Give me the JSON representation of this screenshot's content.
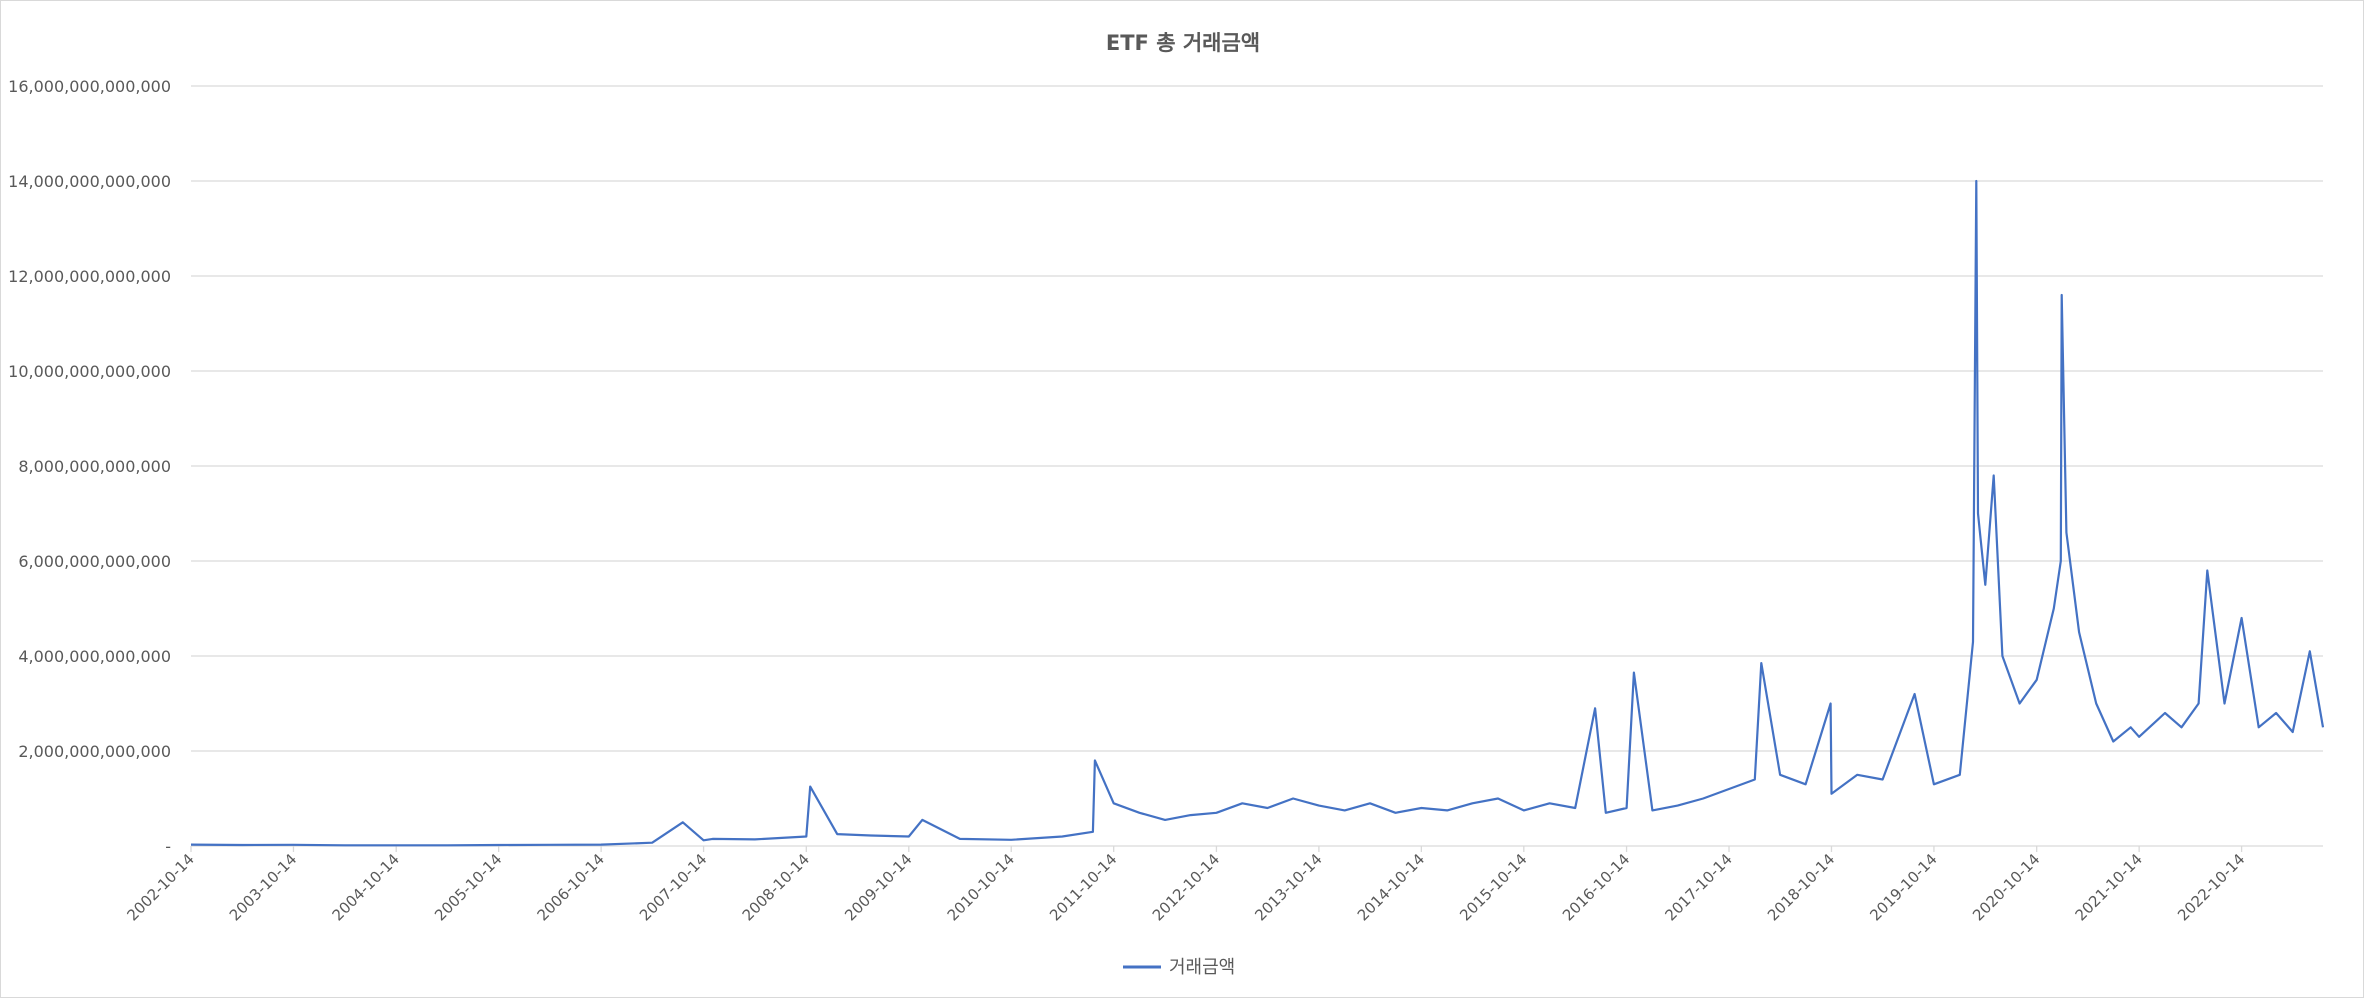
{
  "chart_data": {
    "type": "line",
    "title": "ETF 총 거래금액",
    "xlabel": "",
    "ylabel": "",
    "ylim": [
      0,
      16000000000000
    ],
    "yticks": [
      0,
      2000000000000,
      4000000000000,
      6000000000000,
      8000000000000,
      10000000000000,
      12000000000000,
      14000000000000,
      16000000000000
    ],
    "ytick_labels": [
      "-",
      "2,000,000,000,000",
      "4,000,000,000,000",
      "6,000,000,000,000",
      "8,000,000,000,000",
      "10,000,000,000,000",
      "12,000,000,000,000",
      "14,000,000,000,000",
      "16,000,000,000,000"
    ],
    "xrange": [
      "2002-10-14",
      "2023-07-31"
    ],
    "xtick_labels": [
      "2002-10-14",
      "2003-10-14",
      "2004-10-14",
      "2005-10-14",
      "2006-10-14",
      "2007-10-14",
      "2008-10-14",
      "2009-10-14",
      "2010-10-14",
      "2011-10-14",
      "2012-10-14",
      "2013-10-14",
      "2014-10-14",
      "2015-10-14",
      "2016-10-14",
      "2017-10-14",
      "2018-10-14",
      "2019-10-14",
      "2020-10-14",
      "2021-10-14",
      "2022-10-14"
    ],
    "grid": true,
    "legend_position": "bottom",
    "series": [
      {
        "name": "거래금액",
        "color": "#4472c4",
        "x": [
          "2002-10-14",
          "2003-04-14",
          "2003-10-14",
          "2004-04-14",
          "2004-10-14",
          "2005-04-14",
          "2005-10-14",
          "2006-04-14",
          "2006-10-14",
          "2007-04-14",
          "2007-08-01",
          "2007-10-14",
          "2007-11-15",
          "2008-04-14",
          "2008-10-14",
          "2008-10-28",
          "2009-02-01",
          "2009-06-01",
          "2009-10-14",
          "2009-12-01",
          "2010-04-14",
          "2010-10-14",
          "2011-04-14",
          "2011-08-01",
          "2011-08-08",
          "2011-10-14",
          "2012-01-14",
          "2012-04-14",
          "2012-07-14",
          "2012-10-14",
          "2013-01-14",
          "2013-04-14",
          "2013-07-14",
          "2013-10-14",
          "2014-01-14",
          "2014-04-14",
          "2014-07-14",
          "2014-10-14",
          "2015-01-14",
          "2015-04-14",
          "2015-07-14",
          "2015-10-14",
          "2016-01-14",
          "2016-04-14",
          "2016-06-24",
          "2016-08-01",
          "2016-10-14",
          "2016-11-09",
          "2017-01-14",
          "2017-04-14",
          "2017-07-14",
          "2017-10-14",
          "2018-01-14",
          "2018-02-06",
          "2018-04-14",
          "2018-07-14",
          "2018-10-14",
          "2018-10-11",
          "2019-01-14",
          "2019-04-14",
          "2019-08-06",
          "2019-10-14",
          "2020-01-14",
          "2020-03-01",
          "2020-03-13",
          "2020-03-19",
          "2020-04-14",
          "2020-05-14",
          "2020-06-14",
          "2020-08-14",
          "2020-10-14",
          "2020-12-14",
          "2021-01-08",
          "2021-01-11",
          "2021-01-28",
          "2021-03-14",
          "2021-05-14",
          "2021-07-14",
          "2021-09-14",
          "2021-10-14",
          "2022-01-14",
          "2022-03-14",
          "2022-05-14",
          "2022-06-14",
          "2022-08-14",
          "2022-10-14",
          "2022-12-14",
          "2023-02-14",
          "2023-04-14",
          "2023-06-14",
          "2023-07-31"
        ],
        "values": [
          30000000000,
          20000000000,
          25000000000,
          15000000000,
          15000000000,
          15000000000,
          20000000000,
          25000000000,
          30000000000,
          70000000000,
          500000000000,
          120000000000,
          150000000000,
          140000000000,
          200000000000,
          1250000000000,
          250000000000,
          220000000000,
          200000000000,
          550000000000,
          150000000000,
          130000000000,
          200000000000,
          300000000000,
          1800000000000,
          900000000000,
          700000000000,
          550000000000,
          650000000000,
          700000000000,
          900000000000,
          800000000000,
          1000000000000,
          850000000000,
          750000000000,
          900000000000,
          700000000000,
          800000000000,
          750000000000,
          900000000000,
          1000000000000,
          750000000000,
          900000000000,
          800000000000,
          2900000000000,
          700000000000,
          800000000000,
          3650000000000,
          750000000000,
          850000000000,
          1000000000000,
          1200000000000,
          1400000000000,
          3850000000000,
          1500000000000,
          1300000000000,
          1100000000000,
          3000000000000,
          1500000000000,
          1400000000000,
          3200000000000,
          1300000000000,
          1500000000000,
          4300000000000,
          14000000000000,
          7000000000000,
          5500000000000,
          7800000000000,
          4000000000000,
          3000000000000,
          3500000000000,
          5000000000000,
          6000000000000,
          11600000000000,
          6600000000000,
          4500000000000,
          3000000000000,
          2200000000000,
          2500000000000,
          2300000000000,
          2800000000000,
          2500000000000,
          3000000000000,
          5800000000000,
          3000000000000,
          4800000000000,
          2500000000000,
          2800000000000,
          2400000000000,
          4100000000000,
          2500000000000
        ]
      }
    ]
  }
}
